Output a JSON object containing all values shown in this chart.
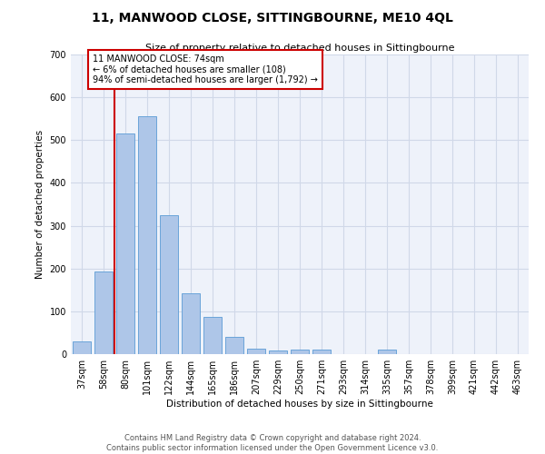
{
  "title": "11, MANWOOD CLOSE, SITTINGBOURNE, ME10 4QL",
  "subtitle": "Size of property relative to detached houses in Sittingbourne",
  "xlabel": "Distribution of detached houses by size in Sittingbourne",
  "ylabel": "Number of detached properties",
  "categories": [
    "37sqm",
    "58sqm",
    "80sqm",
    "101sqm",
    "122sqm",
    "144sqm",
    "165sqm",
    "186sqm",
    "207sqm",
    "229sqm",
    "250sqm",
    "271sqm",
    "293sqm",
    "314sqm",
    "335sqm",
    "357sqm",
    "378sqm",
    "399sqm",
    "421sqm",
    "442sqm",
    "463sqm"
  ],
  "values": [
    30,
    193,
    515,
    555,
    325,
    143,
    88,
    40,
    13,
    8,
    10,
    10,
    0,
    0,
    10,
    0,
    0,
    0,
    0,
    0,
    0
  ],
  "bar_color": "#aec6e8",
  "bar_edge_color": "#5b9bd5",
  "vline_color": "#cc0000",
  "annotation_text": "11 MANWOOD CLOSE: 74sqm\n← 6% of detached houses are smaller (108)\n94% of semi-detached houses are larger (1,792) →",
  "annotation_box_color": "#ffffff",
  "annotation_box_edge": "#cc0000",
  "ylim": [
    0,
    700
  ],
  "yticks": [
    0,
    100,
    200,
    300,
    400,
    500,
    600,
    700
  ],
  "grid_color": "#d0d8e8",
  "background_color": "#eef2fa",
  "footer_line1": "Contains HM Land Registry data © Crown copyright and database right 2024.",
  "footer_line2": "Contains public sector information licensed under the Open Government Licence v3.0."
}
